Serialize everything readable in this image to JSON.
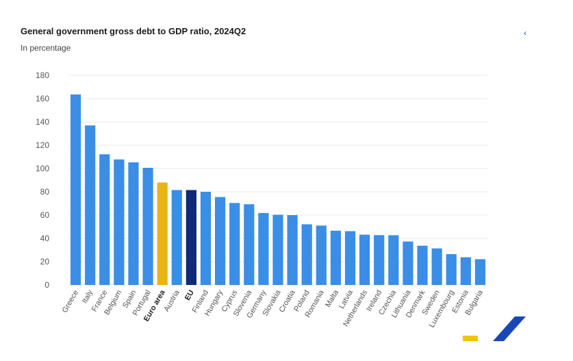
{
  "header": {
    "share_icon": "share-icon"
  },
  "colors": {
    "bar": "#3a8ee6",
    "euro_area": "#e8b514",
    "eu": "#0e2a78",
    "grid": "#e4e8ee",
    "axis_text": "#555555",
    "decor_blue": "#1a47b8",
    "decor_yellow": "#f2c500"
  },
  "chart_data": {
    "type": "bar",
    "title": "General government gross debt to GDP ratio, 2024Q2",
    "subtitle": "In percentage",
    "xlabel": "",
    "ylabel": "",
    "ylim": [
      0,
      180
    ],
    "yticks": [
      0,
      20,
      40,
      60,
      80,
      100,
      120,
      140,
      160,
      180
    ],
    "grid": true,
    "legend": "none",
    "categories": [
      "Greece",
      "Italy",
      "France",
      "Belgium",
      "Spain",
      "Portugal",
      "Euro area",
      "Austria",
      "EU",
      "Finland",
      "Hungary",
      "Cyprus",
      "Slovenia",
      "Germany",
      "Slovakia",
      "Croatia",
      "Poland",
      "Romania",
      "Malta",
      "Latvia",
      "Netherlands",
      "Ireland",
      "Czechia",
      "Lithuania",
      "Denmark",
      "Sweden",
      "Luxembourg",
      "Estonia",
      "Bulgaria"
    ],
    "values": [
      163.6,
      137.0,
      112.2,
      107.8,
      105.3,
      100.6,
      88.0,
      81.5,
      81.5,
      80.0,
      75.5,
      70.4,
      69.3,
      61.8,
      60.3,
      60.0,
      52.1,
      51.0,
      46.6,
      46.2,
      43.2,
      42.8,
      42.7,
      37.3,
      33.7,
      31.4,
      26.5,
      23.8,
      22.1
    ],
    "highlighted": {
      "Euro area": "euro_area",
      "EU": "eu"
    },
    "bold_labels": [
      "Euro area",
      "EU"
    ]
  }
}
